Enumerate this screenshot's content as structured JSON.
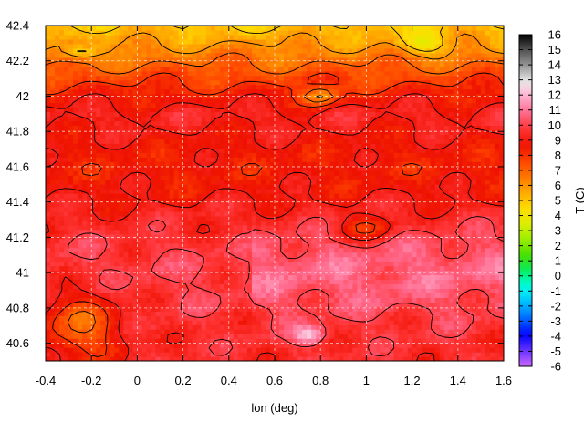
{
  "chart_data": {
    "type": "heatmap",
    "title": "",
    "xlabel": "lon (deg)",
    "ylabel": "",
    "colorbar_label": "T (C)",
    "xlim": [
      -0.4,
      1.6
    ],
    "ylim": [
      40.5,
      42.4
    ],
    "x_ticks": [
      {
        "v": -0.4,
        "label": "-0.4"
      },
      {
        "v": -0.2,
        "label": "-0.2"
      },
      {
        "v": 0,
        "label": "0"
      },
      {
        "v": 0.2,
        "label": "0.2"
      },
      {
        "v": 0.4,
        "label": "0.4"
      },
      {
        "v": 0.6,
        "label": "0.6"
      },
      {
        "v": 0.8,
        "label": "0.8"
      },
      {
        "v": 1,
        "label": "1"
      },
      {
        "v": 1.2,
        "label": "1.2"
      },
      {
        "v": 1.4,
        "label": "1.4"
      },
      {
        "v": 1.6,
        "label": "1.6"
      }
    ],
    "y_ticks": [
      {
        "v": 40.6,
        "label": "40.6"
      },
      {
        "v": 40.8,
        "label": "40.8"
      },
      {
        "v": 41,
        "label": "41"
      },
      {
        "v": 41.2,
        "label": "41.2"
      },
      {
        "v": 41.4,
        "label": "41.4"
      },
      {
        "v": 41.6,
        "label": "41.6"
      },
      {
        "v": 41.8,
        "label": "41.8"
      },
      {
        "v": 42,
        "label": "42"
      },
      {
        "v": 42.2,
        "label": "42.2"
      },
      {
        "v": 42.4,
        "label": "42.4"
      }
    ],
    "color_range": [
      -6,
      16
    ],
    "colorbar_ticks": [
      "-6",
      "-5",
      "-4",
      "-3",
      "-2",
      "-1",
      "0",
      "1",
      "2",
      "3",
      "4",
      "5",
      "6",
      "7",
      "8",
      "9",
      "10",
      "11",
      "12",
      "13",
      "14",
      "15",
      "16"
    ],
    "grid": true,
    "contours": true,
    "palette": [
      "#cc66ff",
      "#6633ff",
      "#0000ff",
      "#0066ff",
      "#00bbff",
      "#00ffee",
      "#00ee66",
      "#44dd00",
      "#99ee00",
      "#ddee00",
      "#ffdd00",
      "#ffaa00",
      "#ff7700",
      "#ff4400",
      "#ee1100",
      "#ff3333",
      "#ff6688",
      "#ffaacc",
      "#eeeeee",
      "#999999",
      "#555555",
      "#000000"
    ]
  }
}
